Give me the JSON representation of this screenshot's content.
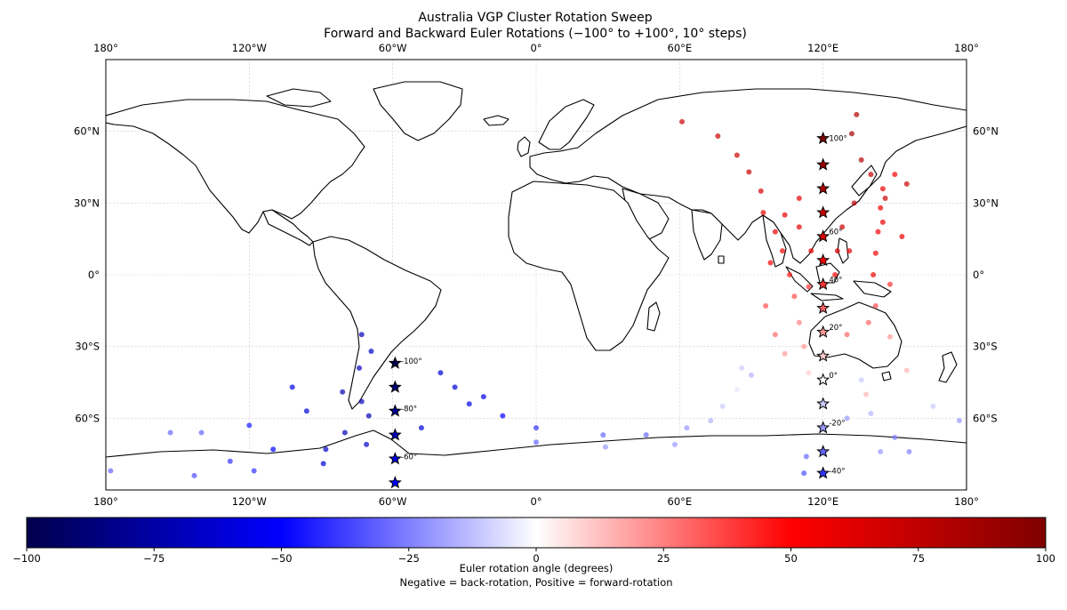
{
  "chart_data": {
    "type": "scatter",
    "title": "Australia VGP Cluster Rotation Sweep",
    "subtitle": "Forward and Backward Euler Rotations (−100° to +100°, 10° steps)",
    "xlim": [
      -180,
      180
    ],
    "ylim": [
      -90,
      90
    ],
    "lon_ticks": [
      {
        "value": -180,
        "label": "180°"
      },
      {
        "value": -120,
        "label": "120°W"
      },
      {
        "value": -60,
        "label": "60°W"
      },
      {
        "value": 0,
        "label": "0°"
      },
      {
        "value": 60,
        "label": "60°E"
      },
      {
        "value": 120,
        "label": "120°E"
      },
      {
        "value": 180,
        "label": "180°"
      }
    ],
    "lat_ticks": [
      {
        "value": 60,
        "label": "60°N"
      },
      {
        "value": 30,
        "label": "30°N"
      },
      {
        "value": 0,
        "label": "0°"
      },
      {
        "value": -30,
        "label": "30°S"
      },
      {
        "value": -60,
        "label": "60°S"
      }
    ],
    "mean_pole_stars": [
      {
        "angle": 100,
        "lon": 120,
        "lat": 57
      },
      {
        "angle": 90,
        "lon": 120,
        "lat": 46
      },
      {
        "angle": 80,
        "lon": 120,
        "lat": 36
      },
      {
        "angle": 70,
        "lon": 120,
        "lat": 26
      },
      {
        "angle": 60,
        "lon": 120,
        "lat": 16
      },
      {
        "angle": 50,
        "lon": 120,
        "lat": 6
      },
      {
        "angle": 40,
        "lon": 120,
        "lat": -4
      },
      {
        "angle": 30,
        "lon": 120,
        "lat": -14
      },
      {
        "angle": 20,
        "lon": 120,
        "lat": -24
      },
      {
        "angle": 10,
        "lon": 120,
        "lat": -34
      },
      {
        "angle": 0,
        "lon": 120,
        "lat": -44
      },
      {
        "angle": -10,
        "lon": 120,
        "lat": -54
      },
      {
        "angle": -20,
        "lon": 120,
        "lat": -64
      },
      {
        "angle": -30,
        "lon": 120,
        "lat": -74
      },
      {
        "angle": -40,
        "lon": 120,
        "lat": -83
      },
      {
        "angle": -50,
        "lon": -59,
        "lat": -87
      },
      {
        "angle": -60,
        "lon": -59,
        "lat": -77
      },
      {
        "angle": -70,
        "lon": -59,
        "lat": -67
      },
      {
        "angle": -80,
        "lon": -59,
        "lat": -57
      },
      {
        "angle": -90,
        "lon": -59,
        "lat": -47
      },
      {
        "angle": -100,
        "lon": -59,
        "lat": -37
      }
    ],
    "star_labels": [
      {
        "text": "100°",
        "lon": 121,
        "lat": 57
      },
      {
        "text": "60°",
        "lon": 121,
        "lat": 18
      },
      {
        "text": "40°",
        "lon": 121,
        "lat": -2
      },
      {
        "text": "20°",
        "lon": 121,
        "lat": -22
      },
      {
        "text": "0°",
        "lon": 121,
        "lat": -42
      },
      {
        "text": "-20°",
        "lon": 121,
        "lat": -62
      },
      {
        "text": "-40°",
        "lon": 121,
        "lat": -82
      },
      {
        "text": "-60°",
        "lon": -58,
        "lat": -76
      },
      {
        "text": "-80°",
        "lon": -58,
        "lat": -56
      },
      {
        "text": "-100°",
        "lon": -58,
        "lat": -36
      }
    ],
    "vgp_points": [
      {
        "lon": 61,
        "lat": 64,
        "angle": 70
      },
      {
        "lon": 76,
        "lat": 58,
        "angle": 70
      },
      {
        "lon": 84,
        "lat": 50,
        "angle": 70
      },
      {
        "lon": 89,
        "lat": 43,
        "angle": 70
      },
      {
        "lon": 94,
        "lat": 35,
        "angle": 65
      },
      {
        "lon": 95,
        "lat": 26,
        "angle": 60
      },
      {
        "lon": 100,
        "lat": 18,
        "angle": 60
      },
      {
        "lon": 103,
        "lat": 10,
        "angle": 55
      },
      {
        "lon": 106,
        "lat": 0,
        "angle": 45
      },
      {
        "lon": 108,
        "lat": -9,
        "angle": 35
      },
      {
        "lon": 110,
        "lat": -20,
        "angle": 25
      },
      {
        "lon": 112,
        "lat": -30,
        "angle": 20
      },
      {
        "lon": 114,
        "lat": -41,
        "angle": 10
      },
      {
        "lon": 86,
        "lat": -39,
        "angle": -10
      },
      {
        "lon": 90,
        "lat": -42,
        "angle": -15
      },
      {
        "lon": 84,
        "lat": -48,
        "angle": -5
      },
      {
        "lon": 78,
        "lat": -55,
        "angle": -10
      },
      {
        "lon": 73,
        "lat": -61,
        "angle": -15
      },
      {
        "lon": 63,
        "lat": -64,
        "angle": -20
      },
      {
        "lon": 58,
        "lat": -71,
        "angle": -20
      },
      {
        "lon": 46,
        "lat": -67,
        "angle": -30
      },
      {
        "lon": 28,
        "lat": -67,
        "angle": -30
      },
      {
        "lon": 0,
        "lat": -70,
        "angle": -30
      },
      {
        "lon": 0,
        "lat": -64,
        "angle": -40
      },
      {
        "lon": 29,
        "lat": -72,
        "angle": -20
      },
      {
        "lon": -14,
        "lat": -59,
        "angle": -50
      },
      {
        "lon": -22,
        "lat": -51,
        "angle": -55
      },
      {
        "lon": -28,
        "lat": -54,
        "angle": -55
      },
      {
        "lon": -34,
        "lat": -47,
        "angle": -60
      },
      {
        "lon": -40,
        "lat": -41,
        "angle": -60
      },
      {
        "lon": -48,
        "lat": -64,
        "angle": -60
      },
      {
        "lon": -69,
        "lat": -32,
        "angle": -65
      },
      {
        "lon": -73,
        "lat": -25,
        "angle": -70
      },
      {
        "lon": -74,
        "lat": -39,
        "angle": -70
      },
      {
        "lon": -81,
        "lat": -49,
        "angle": -70
      },
      {
        "lon": -70,
        "lat": -59,
        "angle": -70
      },
      {
        "lon": -73,
        "lat": -53,
        "angle": -70
      },
      {
        "lon": -88,
        "lat": -73,
        "angle": -65
      },
      {
        "lon": -89,
        "lat": -79,
        "angle": -60
      },
      {
        "lon": -96,
        "lat": -57,
        "angle": -60
      },
      {
        "lon": -102,
        "lat": -47,
        "angle": -55
      },
      {
        "lon": -80,
        "lat": -66,
        "angle": -70
      },
      {
        "lon": -71,
        "lat": -71,
        "angle": -65
      },
      {
        "lon": -110,
        "lat": -73,
        "angle": -50
      },
      {
        "lon": -120,
        "lat": -63,
        "angle": -45
      },
      {
        "lon": -128,
        "lat": -78,
        "angle": -40
      },
      {
        "lon": -143,
        "lat": -84,
        "angle": -35
      },
      {
        "lon": -153,
        "lat": -66,
        "angle": -30
      },
      {
        "lon": -178,
        "lat": -82,
        "angle": -30
      },
      {
        "lon": -118,
        "lat": -82,
        "angle": -40
      },
      {
        "lon": -140,
        "lat": -66,
        "angle": -30
      },
      {
        "lon": 141,
        "lat": 0,
        "angle": 55
      },
      {
        "lon": 142,
        "lat": 9,
        "angle": 55
      },
      {
        "lon": 143,
        "lat": 18,
        "angle": 55
      },
      {
        "lon": 144,
        "lat": 28,
        "angle": 55
      },
      {
        "lon": 145,
        "lat": 36,
        "angle": 55
      },
      {
        "lon": 150,
        "lat": 42,
        "angle": 55
      },
      {
        "lon": 153,
        "lat": 16,
        "angle": 55
      },
      {
        "lon": 148,
        "lat": -4,
        "angle": 40
      },
      {
        "lon": 142,
        "lat": -13,
        "angle": 35
      },
      {
        "lon": 130,
        "lat": -25,
        "angle": 30
      },
      {
        "lon": 139,
        "lat": -20,
        "angle": 30
      },
      {
        "lon": 148,
        "lat": -26,
        "angle": 20
      },
      {
        "lon": 155,
        "lat": -40,
        "angle": 15
      },
      {
        "lon": 138,
        "lat": -50,
        "angle": 15
      },
      {
        "lon": 136,
        "lat": -44,
        "angle": -10
      },
      {
        "lon": 140,
        "lat": -58,
        "angle": -15
      },
      {
        "lon": 150,
        "lat": -68,
        "angle": -25
      },
      {
        "lon": 144,
        "lat": -74,
        "angle": -20
      },
      {
        "lon": 156,
        "lat": -74,
        "angle": -25
      },
      {
        "lon": 166,
        "lat": -55,
        "angle": -10
      },
      {
        "lon": 177,
        "lat": -61,
        "angle": -20
      },
      {
        "lon": 113,
        "lat": -76,
        "angle": -30
      },
      {
        "lon": 112,
        "lat": -83,
        "angle": -35
      },
      {
        "lon": 130,
        "lat": -60,
        "angle": -20
      },
      {
        "lon": 132,
        "lat": 59,
        "angle": 85
      },
      {
        "lon": 134,
        "lat": 67,
        "angle": 80
      },
      {
        "lon": 136,
        "lat": 48,
        "angle": 80
      },
      {
        "lon": 140,
        "lat": 42,
        "angle": 75
      },
      {
        "lon": 146,
        "lat": 32,
        "angle": 70
      },
      {
        "lon": 133,
        "lat": 30,
        "angle": 75
      },
      {
        "lon": 128,
        "lat": 20,
        "angle": 70
      },
      {
        "lon": 126,
        "lat": 10,
        "angle": 65
      },
      {
        "lon": 125,
        "lat": 0,
        "angle": 55
      },
      {
        "lon": 104,
        "lat": 25,
        "angle": 60
      },
      {
        "lon": 110,
        "lat": 20,
        "angle": 60
      },
      {
        "lon": 115,
        "lat": 10,
        "angle": 55
      },
      {
        "lon": 98,
        "lat": 5,
        "angle": 50
      },
      {
        "lon": 96,
        "lat": -13,
        "angle": 35
      },
      {
        "lon": 100,
        "lat": -25,
        "angle": 30
      },
      {
        "lon": 104,
        "lat": -33,
        "angle": 20
      },
      {
        "lon": 145,
        "lat": 22,
        "angle": 60
      },
      {
        "lon": 155,
        "lat": 38,
        "angle": 70
      },
      {
        "lon": 131,
        "lat": 10,
        "angle": 60
      },
      {
        "lon": 114,
        "lat": -5,
        "angle": 40
      },
      {
        "lon": 110,
        "lat": 32,
        "angle": 60
      }
    ],
    "colorbar": {
      "colormap": "seismic",
      "range": [
        -100,
        100
      ],
      "ticks": [
        {
          "value": -100,
          "label": "−100"
        },
        {
          "value": -75,
          "label": "−75"
        },
        {
          "value": -50,
          "label": "−50"
        },
        {
          "value": -25,
          "label": "−25"
        },
        {
          "value": 0,
          "label": "0"
        },
        {
          "value": 25,
          "label": "25"
        },
        {
          "value": 50,
          "label": "50"
        },
        {
          "value": 75,
          "label": "75"
        },
        {
          "value": 100,
          "label": "100"
        }
      ],
      "label": "Euler rotation angle (degrees)",
      "sublabel": "Negative = back-rotation, Positive = forward-rotation"
    }
  }
}
